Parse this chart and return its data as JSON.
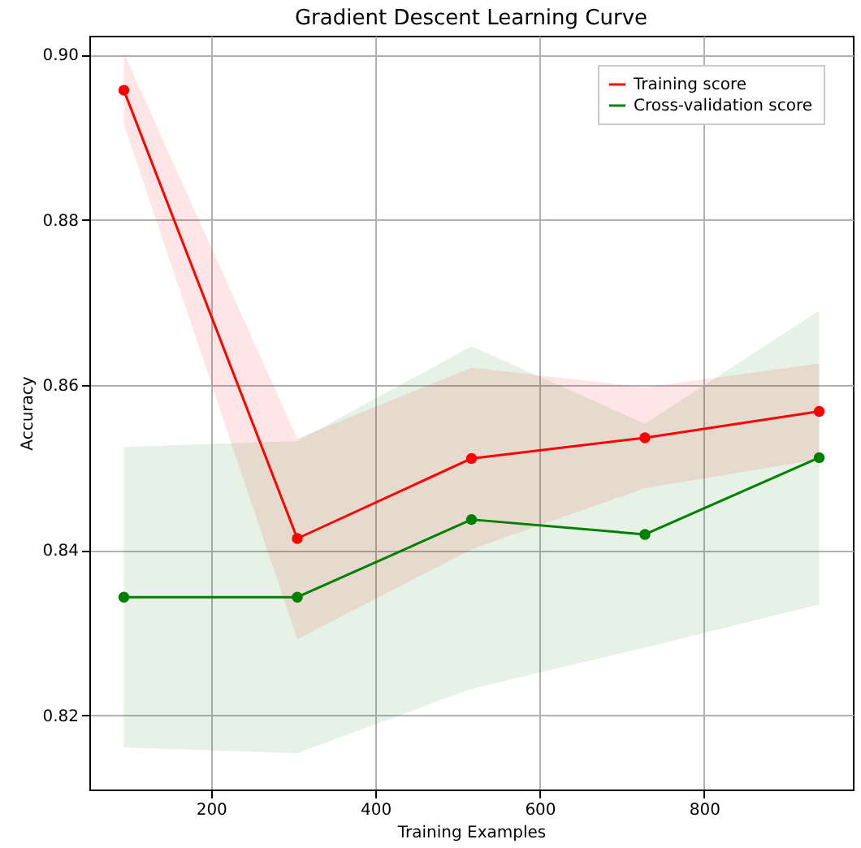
{
  "chart_data": {
    "type": "line",
    "title": "Gradient Descent Learning Curve",
    "xlabel": "Training Examples",
    "ylabel": "Accuracy",
    "x": [
      94,
      305,
      517,
      728,
      940
    ],
    "series": [
      {
        "name": "Training score",
        "color": "#ff0000",
        "values": [
          0.8957,
          0.8414,
          0.8511,
          0.8536,
          0.8568
        ],
        "lower": [
          0.8916,
          0.8292,
          0.8401,
          0.8475,
          0.851
        ],
        "upper": [
          0.9002,
          0.8535,
          0.8621,
          0.8597,
          0.8626
        ]
      },
      {
        "name": "Cross-validation score",
        "color": "#008000",
        "values": [
          0.8343,
          0.8343,
          0.8437,
          0.8419,
          0.8512
        ],
        "lower": [
          0.8161,
          0.8154,
          0.8232,
          0.8282,
          0.8334
        ],
        "upper": [
          0.8525,
          0.8532,
          0.8647,
          0.8553,
          0.869
        ]
      }
    ],
    "xlim": [
      52,
      981
    ],
    "ylim": [
      0.811,
      0.9023
    ],
    "xticks": [
      200,
      400,
      600,
      800
    ],
    "yticks": [
      0.82,
      0.84,
      0.86,
      0.88,
      {
        "value": 0.9,
        "label": "0.90"
      }
    ],
    "grid": true,
    "legend": "top right",
    "marker": "circle",
    "line_style": "solid"
  }
}
